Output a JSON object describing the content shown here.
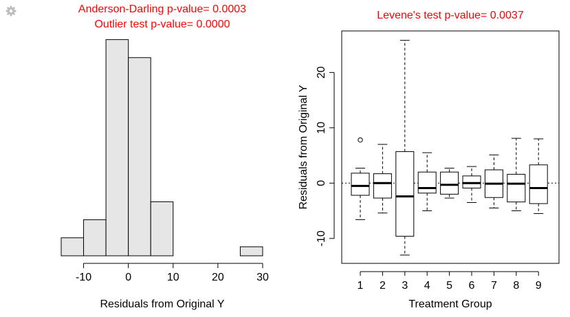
{
  "icons": {
    "settings": "gear-icon"
  },
  "colors": {
    "title": "#ff0000",
    "bar_fill": "#e6e6e6",
    "stroke": "#000000",
    "gear": "#bdbdbd"
  },
  "chart_data": [
    {
      "type": "bar",
      "subtype": "histogram",
      "title_lines": [
        "Anderson-Darling p-value= 0.0003",
        "Outlier test p-value= 0.0000"
      ],
      "xlabel": "Residuals from Original Y",
      "ylabel": "",
      "bin_edges": [
        -15,
        -10,
        -5,
        0,
        5,
        10,
        15,
        20,
        25,
        30
      ],
      "counts": [
        1,
        2,
        12,
        11,
        3,
        0,
        0,
        0,
        0.5
      ],
      "xlim": [
        -15,
        30
      ],
      "x_ticks": [
        -10,
        0,
        10,
        20,
        30
      ],
      "x_tick_labels": [
        "-10",
        "0",
        "10",
        "20",
        "30"
      ],
      "y_axis_shown": false,
      "frame": false
    },
    {
      "type": "boxplot",
      "title": "Levene's test p-value= 0.0037",
      "xlabel": "Treatment Group",
      "ylabel": "Residuals from Original Y",
      "categories": [
        "1",
        "2",
        "3",
        "4",
        "5",
        "6",
        "7",
        "8",
        "9"
      ],
      "boxes": [
        {
          "q1": -2.2,
          "median": -0.5,
          "q3": 1.8,
          "whisker_low": -6.6,
          "whisker_high": 2.7,
          "outliers": [
            7.8
          ]
        },
        {
          "q1": -2.7,
          "median": 0.0,
          "q3": 1.7,
          "whisker_low": -5.4,
          "whisker_high": 7.0,
          "outliers": []
        },
        {
          "q1": -9.6,
          "median": -2.4,
          "q3": 5.7,
          "whisker_low": -13.0,
          "whisker_high": 25.8,
          "outliers": []
        },
        {
          "q1": -1.8,
          "median": -0.9,
          "q3": 2.0,
          "whisker_low": -5.0,
          "whisker_high": 5.5,
          "outliers": []
        },
        {
          "q1": -2.0,
          "median": -0.3,
          "q3": 2.0,
          "whisker_low": -2.7,
          "whisker_high": 2.7,
          "outliers": []
        },
        {
          "q1": -0.9,
          "median": 0.0,
          "q3": 1.3,
          "whisker_low": -3.5,
          "whisker_high": 3.0,
          "outliers": []
        },
        {
          "q1": -2.6,
          "median": -0.1,
          "q3": 2.4,
          "whisker_low": -4.5,
          "whisker_high": 5.1,
          "outliers": []
        },
        {
          "q1": -3.4,
          "median": -0.1,
          "q3": 1.6,
          "whisker_low": -5.0,
          "whisker_high": 8.1,
          "outliers": []
        },
        {
          "q1": -3.7,
          "median": -0.9,
          "q3": 3.3,
          "whisker_low": -5.5,
          "whisker_high": 8.0,
          "outliers": []
        }
      ],
      "reference_line": 0,
      "ylim": [
        -14.5,
        27.5
      ],
      "y_ticks": [
        -10,
        0,
        10,
        20
      ],
      "y_tick_labels": [
        "-10",
        "0",
        "10",
        "20"
      ],
      "frame": true
    }
  ]
}
